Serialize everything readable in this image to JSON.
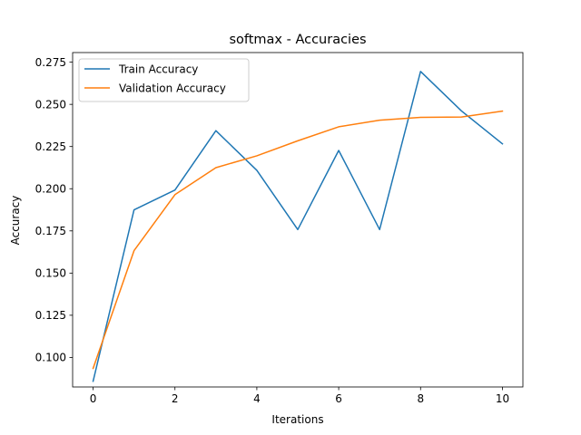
{
  "chart_data": {
    "type": "line",
    "title": "softmax - Accuracies",
    "xlabel": "Iterations",
    "ylabel": "Accuracy",
    "xlim": [
      -0.5,
      10.5
    ],
    "ylim": [
      0.0825,
      0.2807
    ],
    "xticks": [
      0,
      2,
      4,
      6,
      8,
      10
    ],
    "yticks": [
      0.1,
      0.125,
      0.15,
      0.175,
      0.2,
      0.225,
      0.25,
      0.275
    ],
    "ytick_labels": [
      "0.100",
      "0.125",
      "0.150",
      "0.175",
      "0.200",
      "0.225",
      "0.250",
      "0.275"
    ],
    "grid": false,
    "legend_position": "upper-left",
    "x": [
      0,
      1,
      2,
      3,
      4,
      5,
      6,
      7,
      8,
      9,
      10
    ],
    "series": [
      {
        "name": "Train Accuracy",
        "color": "#1f77b4",
        "values": [
          0.0859,
          0.1875,
          0.1992,
          0.2344,
          0.2109,
          0.1758,
          0.2227,
          0.1758,
          0.2695,
          0.2461,
          0.2266
        ]
      },
      {
        "name": "Validation Accuracy",
        "color": "#ff7f0e",
        "values": [
          0.0935,
          0.1633,
          0.1965,
          0.2125,
          0.2195,
          0.2284,
          0.2367,
          0.2406,
          0.2423,
          0.2425,
          0.246
        ]
      }
    ]
  }
}
